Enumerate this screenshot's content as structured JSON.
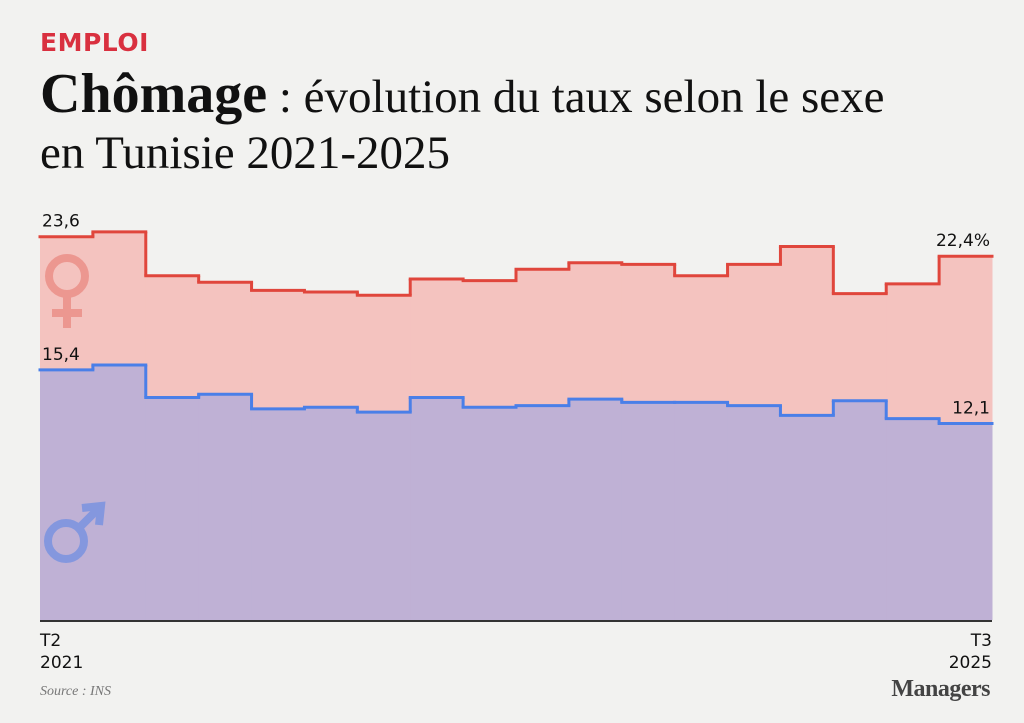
{
  "kicker": "EMPLOI",
  "chart_data": {
    "type": "step-area",
    "title": "Chômage",
    "subtitle": ": évolution du taux selon le sexe en Tunisie 2021-2025",
    "categories": [
      "T2\n2021",
      null,
      null,
      null,
      null,
      null,
      null,
      null,
      null,
      null,
      null,
      null,
      null,
      null,
      null,
      null,
      null,
      "T3\n2025"
    ],
    "ylim": [
      0,
      25
    ],
    "series": [
      {
        "name": "Femmes",
        "color": "#e0463c",
        "fill": "#f4c3bf",
        "values": [
          23.6,
          23.9,
          21.2,
          20.8,
          20.3,
          20.2,
          20.0,
          21.0,
          20.9,
          21.6,
          22.0,
          21.9,
          21.2,
          21.9,
          23.0,
          20.1,
          20.7,
          22.4
        ],
        "value_labels": [
          "23,6",
          null,
          null,
          null,
          null,
          null,
          null,
          null,
          null,
          null,
          null,
          null,
          null,
          null,
          null,
          null,
          null,
          "22,4%"
        ]
      },
      {
        "name": "Hommes",
        "color": "#4a7fe8",
        "fill": "#bfb1d5",
        "values": [
          15.4,
          15.7,
          13.7,
          13.9,
          13.0,
          13.1,
          12.8,
          13.7,
          13.1,
          13.2,
          13.6,
          13.4,
          13.4,
          13.2,
          12.6,
          13.5,
          12.4,
          12.1
        ],
        "value_labels": [
          "15,4",
          null,
          null,
          null,
          null,
          null,
          null,
          null,
          null,
          null,
          null,
          null,
          null,
          null,
          null,
          null,
          null,
          "12,1"
        ]
      }
    ],
    "source": "Source : INS",
    "brand": "Managers"
  }
}
